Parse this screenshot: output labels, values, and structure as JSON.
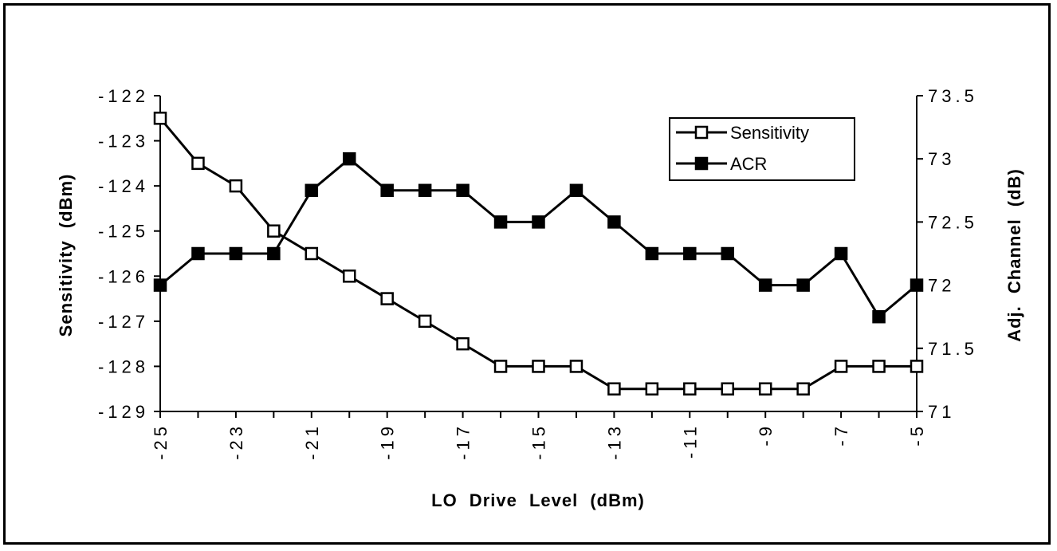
{
  "chart_data": {
    "type": "line",
    "xlabel": "LO Drive Level (dBm)",
    "ylabel": "Sensitivity (dBm)",
    "y2label": "Adj. Channel (dB)",
    "x": [
      -25,
      -24,
      -23,
      -22,
      -21,
      -20,
      -19,
      -18,
      -17,
      -16,
      -15,
      -14,
      -13,
      -12,
      -11,
      -10,
      -9,
      -8,
      -7,
      -6,
      -5
    ],
    "x_tick_labels": [
      "-25",
      "-23",
      "-21",
      "-19",
      "-17",
      "-15",
      "-13",
      "-11",
      "-9",
      "-7",
      "-5"
    ],
    "y_ticks": [
      "-122",
      "-123",
      "-124",
      "-125",
      "-126",
      "-127",
      "-128",
      "-129"
    ],
    "y2_ticks": [
      "73.5",
      "73",
      "72.5",
      "72",
      "71.5",
      "71"
    ],
    "ylim": [
      -129,
      -122
    ],
    "y2lim": [
      71,
      73.5
    ],
    "xlim": [
      -25,
      -5
    ],
    "series": [
      {
        "name": "Sensitivity",
        "axis": "left",
        "marker": "hollow-square",
        "color": "#000000",
        "values": [
          -122.5,
          -123.5,
          -124,
          -125,
          -125.5,
          -126,
          -126.5,
          -127,
          -127.5,
          -128,
          -128,
          -128,
          -128.5,
          -128.5,
          -128.5,
          -128.5,
          -128.5,
          -128.5,
          -128,
          -128,
          -128
        ]
      },
      {
        "name": "ACR",
        "axis": "right",
        "marker": "filled-square",
        "color": "#000000",
        "values": [
          72,
          72.25,
          72.25,
          72.25,
          72.75,
          73,
          72.75,
          72.75,
          72.75,
          72.5,
          72.5,
          72.75,
          72.5,
          72.25,
          72.25,
          72.25,
          72,
          72,
          72.25,
          71.75,
          72
        ]
      }
    ],
    "legend": {
      "position": "top-right",
      "entries": [
        "Sensitivity",
        "ACR"
      ]
    },
    "grid": false
  }
}
